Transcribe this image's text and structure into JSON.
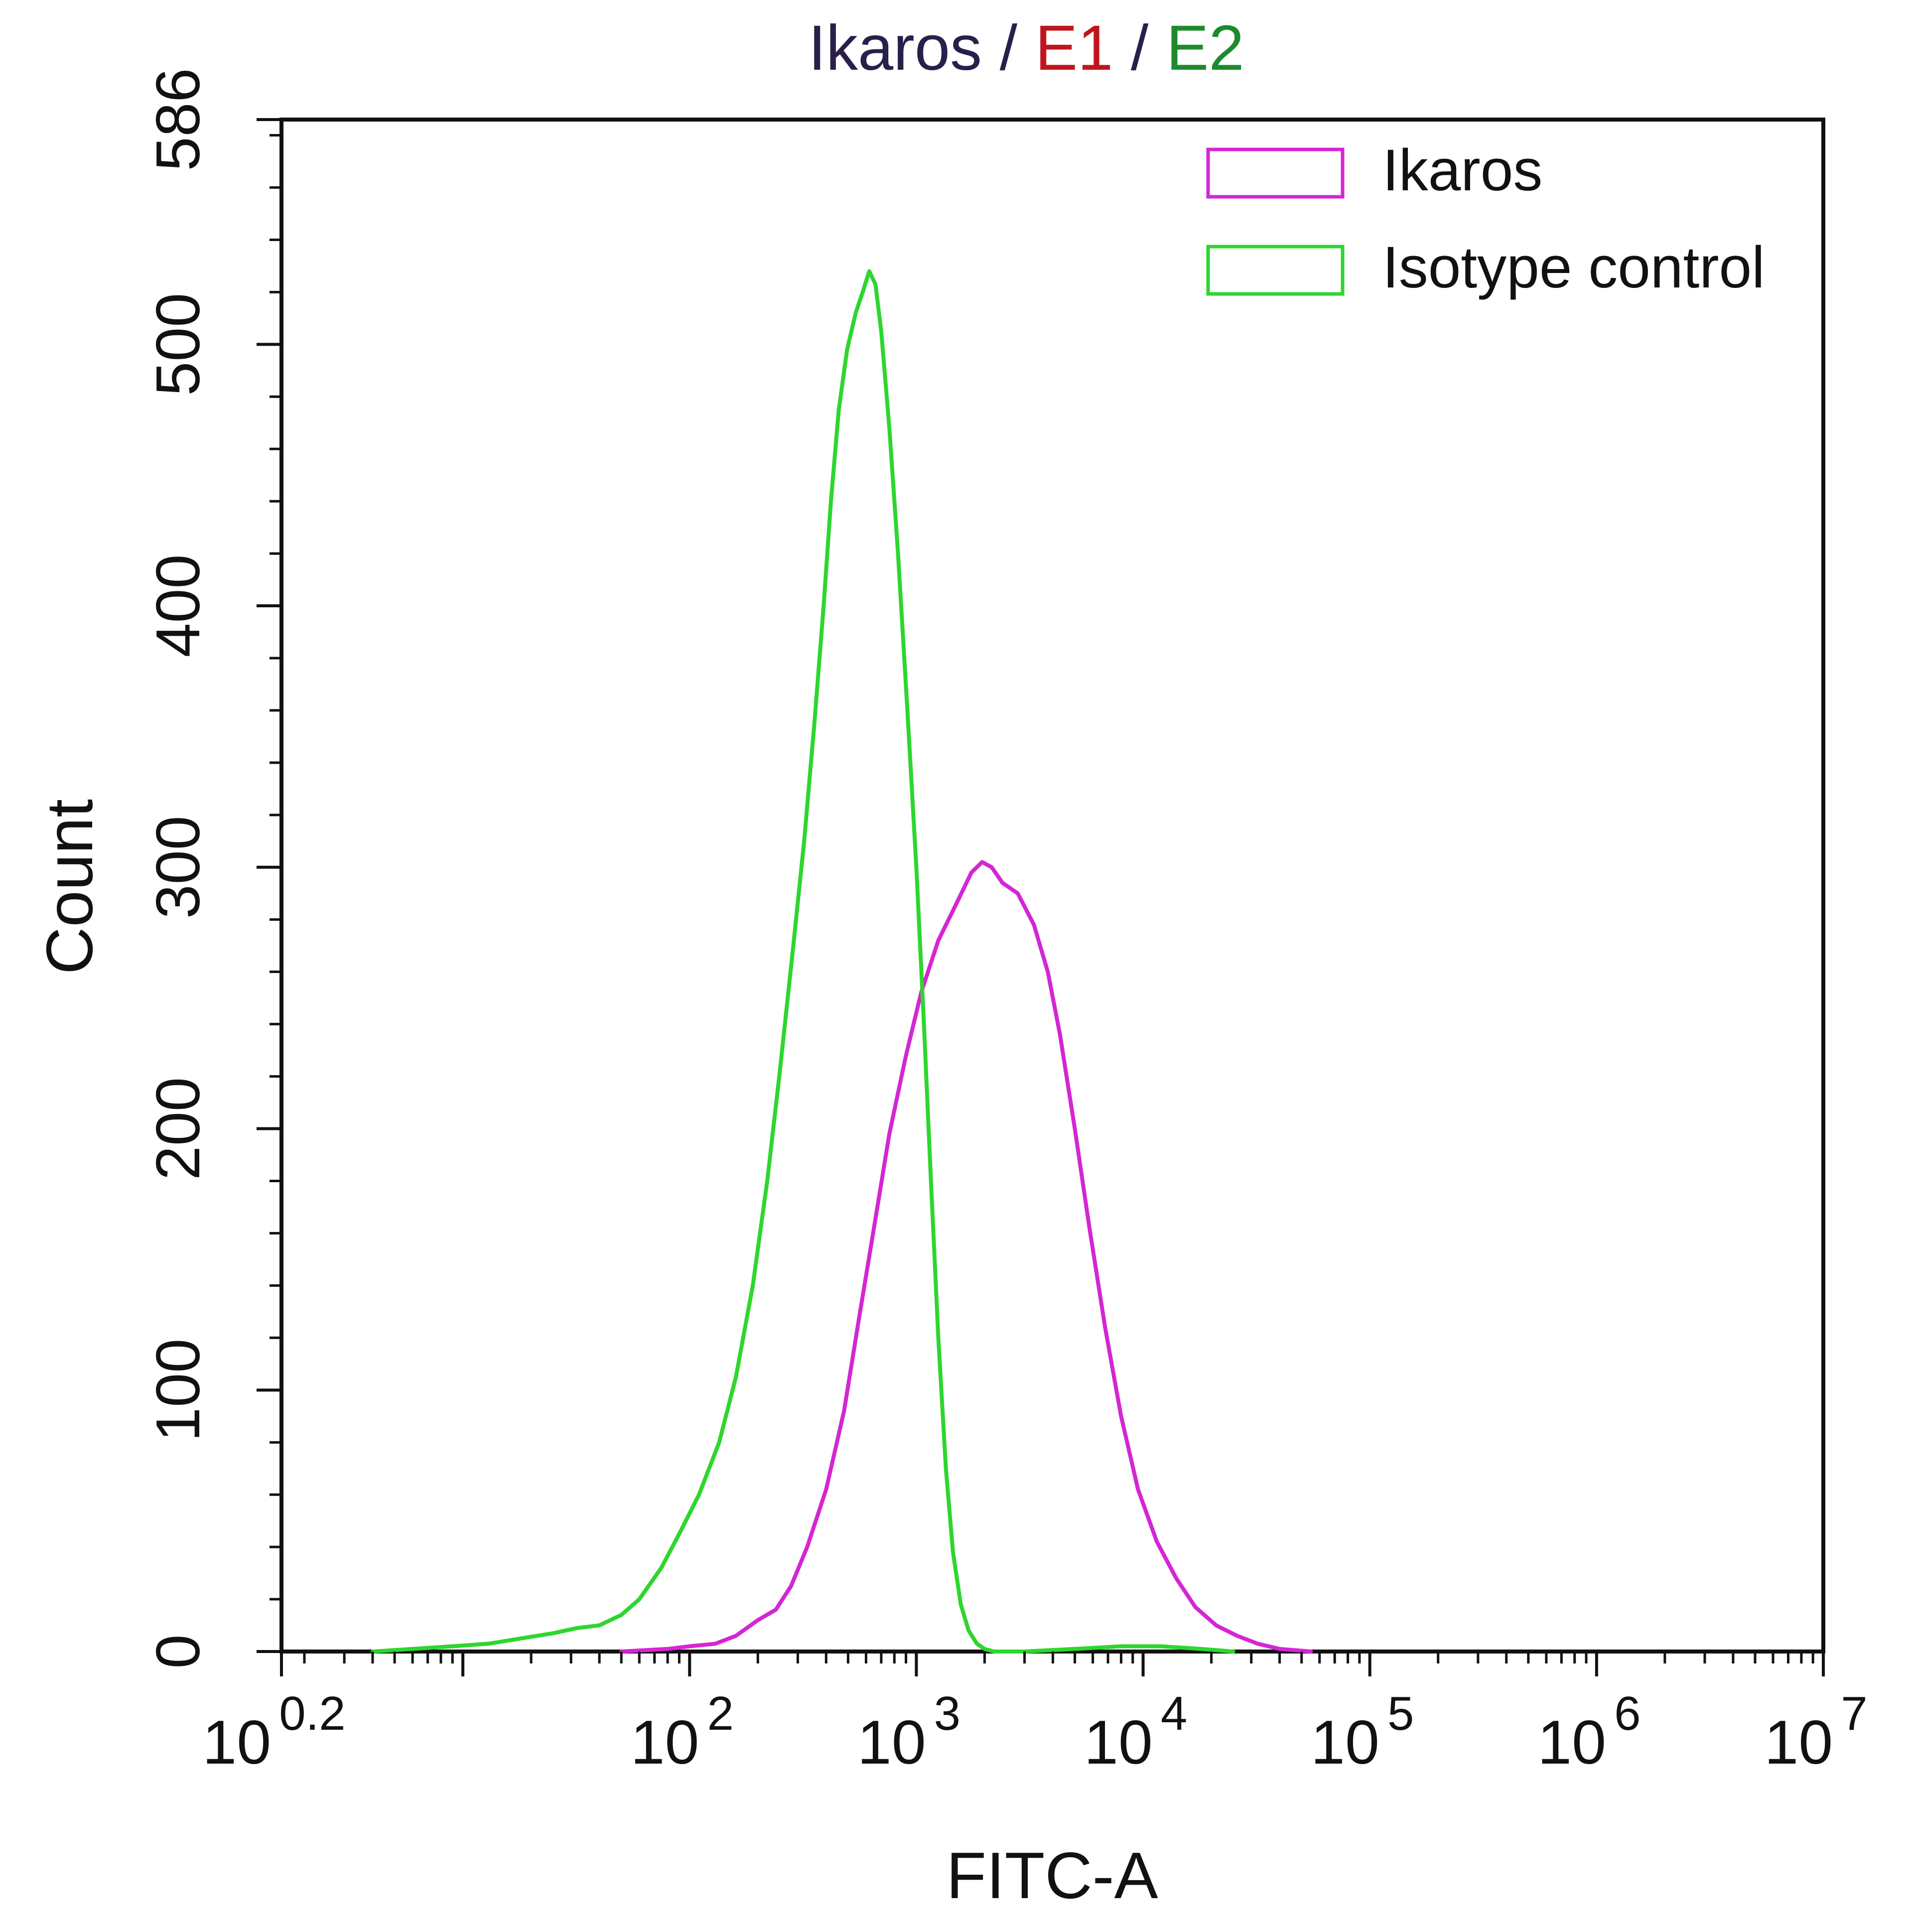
{
  "chart_data": {
    "type": "line",
    "title_parts": [
      {
        "text": "Ikaros",
        "color": "#2a1f4a"
      },
      {
        "text": " / ",
        "color": "#2a1f4a"
      },
      {
        "text": "E1",
        "color": "#c0151f"
      },
      {
        "text": " / ",
        "color": "#2a1f4a"
      },
      {
        "text": "E2",
        "color": "#1e8a2e"
      }
    ],
    "xlabel": "FITC-A",
    "ylabel": "Count",
    "x_scale": "log",
    "xlim": [
      1.585,
      10000000
    ],
    "ylim": [
      0,
      586
    ],
    "grid": false,
    "legend_position": "top-right",
    "x_ticks": [
      {
        "base": "10",
        "exp": "0.2",
        "value": 1.585
      },
      {
        "base": "10",
        "exp": "2",
        "value": 100
      },
      {
        "base": "10",
        "exp": "3",
        "value": 1000
      },
      {
        "base": "10",
        "exp": "4",
        "value": 10000
      },
      {
        "base": "10",
        "exp": "5",
        "value": 100000
      },
      {
        "base": "10",
        "exp": "6",
        "value": 1000000
      },
      {
        "base": "10",
        "exp": "7",
        "value": 10000000
      }
    ],
    "y_ticks": [
      {
        "label": "0",
        "value": 0
      },
      {
        "label": "100",
        "value": 100
      },
      {
        "label": "200",
        "value": 200
      },
      {
        "label": "300",
        "value": 300
      },
      {
        "label": "400",
        "value": 400
      },
      {
        "label": "500",
        "value": 500
      },
      {
        "label": "586",
        "value": 586
      }
    ],
    "series": [
      {
        "name": "Ikaros",
        "color": "#d426d4",
        "points": [
          [
            50,
            0
          ],
          [
            80,
            1
          ],
          [
            100,
            2
          ],
          [
            130,
            3
          ],
          [
            160,
            6
          ],
          [
            200,
            12
          ],
          [
            240,
            16
          ],
          [
            280,
            25
          ],
          [
            330,
            40
          ],
          [
            400,
            62
          ],
          [
            480,
            92
          ],
          [
            560,
            128
          ],
          [
            650,
            162
          ],
          [
            760,
            198
          ],
          [
            900,
            228
          ],
          [
            1050,
            252
          ],
          [
            1250,
            272
          ],
          [
            1500,
            286
          ],
          [
            1750,
            298
          ],
          [
            1950,
            302
          ],
          [
            2150,
            300
          ],
          [
            2400,
            294
          ],
          [
            2800,
            290
          ],
          [
            3300,
            278
          ],
          [
            3800,
            260
          ],
          [
            4300,
            236
          ],
          [
            5000,
            200
          ],
          [
            5800,
            162
          ],
          [
            6800,
            124
          ],
          [
            8000,
            90
          ],
          [
            9500,
            62
          ],
          [
            11500,
            42
          ],
          [
            14000,
            28
          ],
          [
            17000,
            17
          ],
          [
            21000,
            10
          ],
          [
            26000,
            6
          ],
          [
            32000,
            3
          ],
          [
            40000,
            1
          ],
          [
            55000,
            0
          ]
        ]
      },
      {
        "name": "Isotype control",
        "color": "#2ed62e",
        "points": [
          [
            4,
            0
          ],
          [
            6,
            1
          ],
          [
            9,
            2
          ],
          [
            13,
            3
          ],
          [
            18,
            5
          ],
          [
            25,
            7
          ],
          [
            32,
            9
          ],
          [
            40,
            10
          ],
          [
            50,
            14
          ],
          [
            60,
            20
          ],
          [
            75,
            32
          ],
          [
            90,
            45
          ],
          [
            110,
            60
          ],
          [
            135,
            80
          ],
          [
            160,
            105
          ],
          [
            190,
            140
          ],
          [
            220,
            180
          ],
          [
            250,
            222
          ],
          [
            285,
            268
          ],
          [
            320,
            310
          ],
          [
            355,
            355
          ],
          [
            390,
            400
          ],
          [
            420,
            440
          ],
          [
            455,
            475
          ],
          [
            495,
            498
          ],
          [
            540,
            512
          ],
          [
            580,
            520
          ],
          [
            620,
            528
          ],
          [
            660,
            523
          ],
          [
            700,
            505
          ],
          [
            760,
            468
          ],
          [
            830,
            420
          ],
          [
            910,
            362
          ],
          [
            1000,
            300
          ],
          [
            1080,
            240
          ],
          [
            1160,
            180
          ],
          [
            1250,
            120
          ],
          [
            1350,
            70
          ],
          [
            1450,
            38
          ],
          [
            1570,
            18
          ],
          [
            1700,
            8
          ],
          [
            1850,
            3
          ],
          [
            2000,
            1
          ],
          [
            2200,
            0
          ],
          [
            3000,
            0
          ],
          [
            5000,
            1
          ],
          [
            8000,
            2
          ],
          [
            12000,
            2
          ],
          [
            18000,
            1
          ],
          [
            25000,
            0
          ]
        ]
      }
    ]
  }
}
